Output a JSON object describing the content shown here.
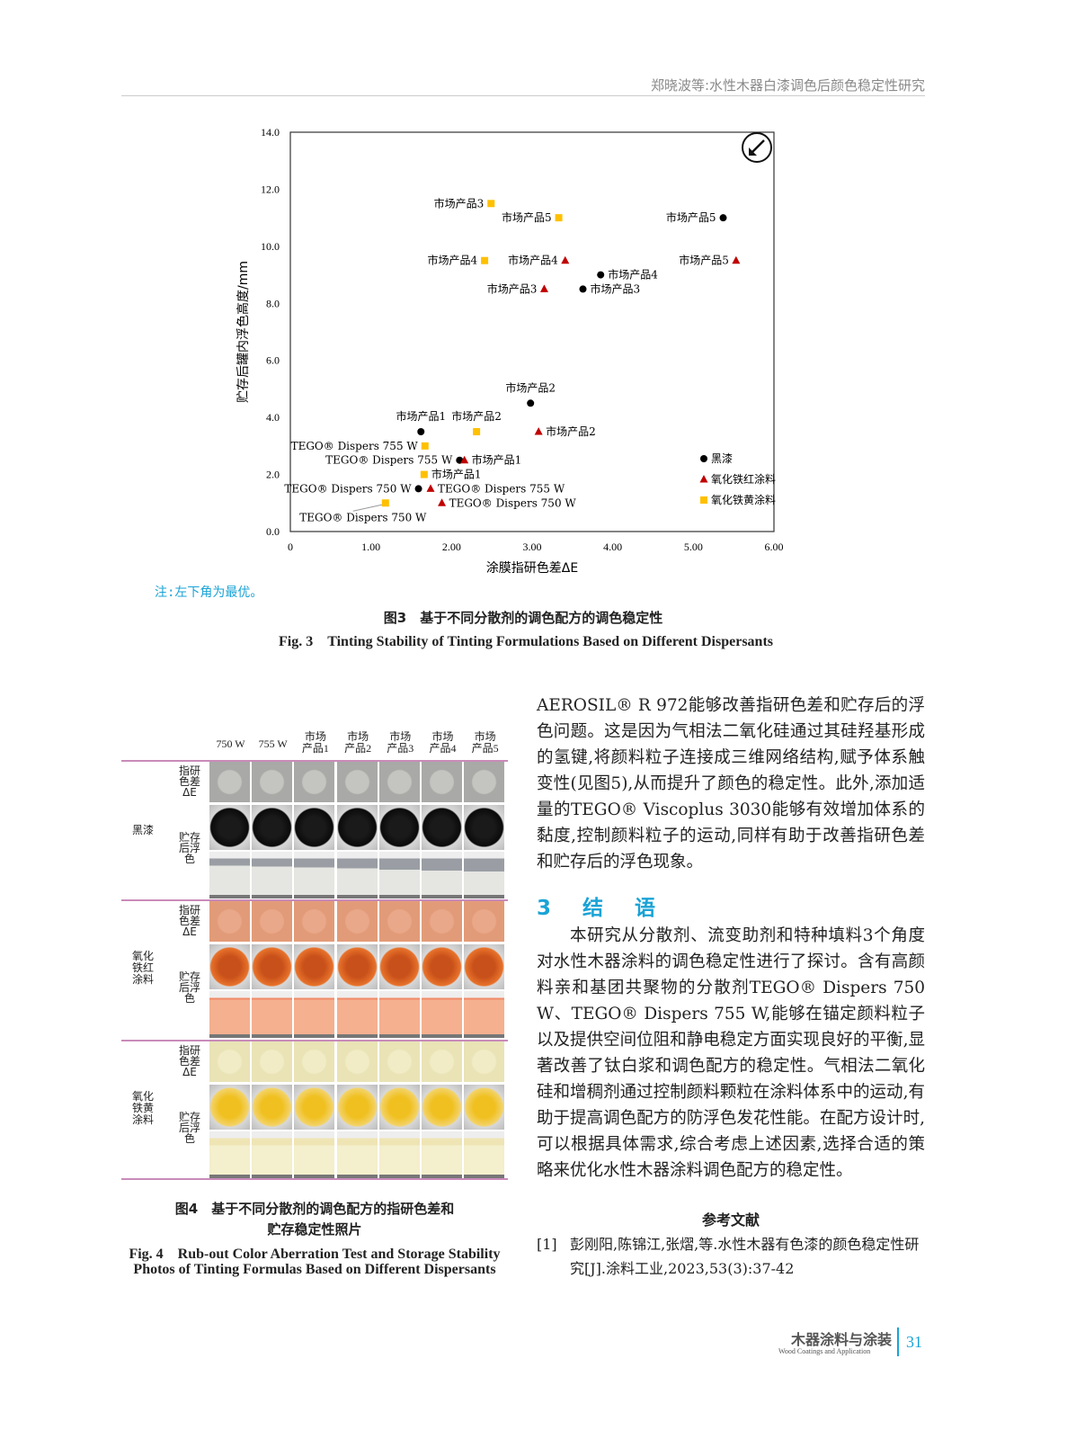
{
  "header": {
    "title": "郑晓波等:水性木器白漆调色后颜色稳定性研究"
  },
  "chart_data": {
    "type": "scatter",
    "xlabel": "涂膜指研色差ΔE",
    "ylabel": "贮存后罐内浮色高度/mm",
    "xlim": [
      0,
      6
    ],
    "ylim": [
      0,
      14
    ],
    "xticks": [
      "0",
      "1.00",
      "2.00",
      "3.00",
      "4.00",
      "5.00",
      "6.00"
    ],
    "yticks": [
      "0.0",
      "2.0",
      "4.0",
      "6.0",
      "8.0",
      "10.0",
      "12.0",
      "14.0"
    ],
    "grid": false,
    "legend_position": "bottom-right",
    "corner_icon": "arrow-down-left-circle-icon",
    "series": [
      {
        "name": "黑漆",
        "marker": "circle",
        "color": "#000000",
        "points": [
          {
            "label": "市场产品5",
            "x": 5.37,
            "y": 11.0
          },
          {
            "label": "市场产品4",
            "x": 3.85,
            "y": 9.0
          },
          {
            "label": "市场产品3",
            "x": 3.63,
            "y": 8.5
          },
          {
            "label": "市场产品2",
            "x": 2.98,
            "y": 4.5
          },
          {
            "label": "市场产品1",
            "x": 1.62,
            "y": 3.5
          },
          {
            "label": "TEGO® Dispers 755 W",
            "x": 2.1,
            "y": 2.5
          },
          {
            "label": "TEGO® Dispers 750 W",
            "x": 1.59,
            "y": 1.5
          }
        ]
      },
      {
        "name": "氧化铁红涂料",
        "marker": "triangle",
        "color": "#c00000",
        "points": [
          {
            "label": "市场产品5",
            "x": 5.53,
            "y": 9.5
          },
          {
            "label": "市场产品4",
            "x": 3.41,
            "y": 9.5
          },
          {
            "label": "市场产品3",
            "x": 3.15,
            "y": 8.5
          },
          {
            "label": "市场产品2",
            "x": 3.08,
            "y": 3.5
          },
          {
            "label": "市场产品1",
            "x": 2.16,
            "y": 2.5
          },
          {
            "label": "TEGO® Dispers 755 W",
            "x": 1.74,
            "y": 1.5
          },
          {
            "label": "TEGO® Dispers 750 W",
            "x": 1.88,
            "y": 1.0
          }
        ]
      },
      {
        "name": "氧化铁黄涂料",
        "marker": "square",
        "color": "#ffc000",
        "points": [
          {
            "label": "市场产品3",
            "x": 2.49,
            "y": 11.5
          },
          {
            "label": "市场产品5",
            "x": 3.33,
            "y": 11.0
          },
          {
            "label": "市场产品4",
            "x": 2.41,
            "y": 9.5
          },
          {
            "label": "市场产品2",
            "x": 2.31,
            "y": 3.5
          },
          {
            "label": "TEGO® Dispers 755 W",
            "x": 1.67,
            "y": 3.0
          },
          {
            "label": "市场产品1",
            "x": 1.66,
            "y": 2.0
          },
          {
            "label": "TEGO® Dispers 750 W",
            "x": 1.18,
            "y": 1.0
          }
        ]
      }
    ]
  },
  "note": "注:左下角为最优。",
  "fig3": {
    "cn": "图3　基于不同分散剂的调色配方的调色稳定性",
    "en": "Fig. 3　Tinting Stability of Tinting Formulations Based on Different Dispersants"
  },
  "fig4": {
    "columns": [
      [
        "750 W",
        ""
      ],
      [
        "755 W",
        ""
      ],
      [
        "市场",
        "产品1"
      ],
      [
        "市场",
        "产品2"
      ],
      [
        "市场",
        "产品3"
      ],
      [
        "市场",
        "产品4"
      ],
      [
        "市场",
        "产品5"
      ]
    ],
    "groups": [
      {
        "name": [
          "黑漆"
        ],
        "rub_label": [
          "指研",
          "色差",
          "ΔE"
        ],
        "storage_label": [
          "贮存",
          "后浮",
          "色"
        ]
      },
      {
        "name": [
          "氧化",
          "铁红",
          "涂料"
        ],
        "rub_label": [
          "指研",
          "色差",
          "ΔE"
        ],
        "storage_label": [
          "贮存",
          "后浮",
          "色"
        ]
      },
      {
        "name": [
          "氧化",
          "铁黄",
          "涂料"
        ],
        "rub_label": [
          "指研",
          "色差",
          "ΔE"
        ],
        "storage_label": [
          "贮存",
          "后浮",
          "色"
        ]
      }
    ],
    "cn1": "图4　基于不同分散剂的调色配方的指研色差和",
    "cn2": "贮存稳定性照片",
    "en1": "Fig. 4　Rub-out Color Aberration Test and Storage Stability",
    "en2": "Photos of Tinting Formulas Based on Different Dispersants"
  },
  "body": {
    "p1": "AEROSIL® R 972能够改善指研色差和贮存后的浮色问题。这是因为气相法二氧化硅通过其硅羟基形成的氢键,将颜料粒子连接成三维网络结构,赋予体系触变性(见图5),从而提升了颜色的稳定性。此外,添加适量的TEGO® Viscoplus 3030能够有效增加体系的黏度,控制颜料粒子的运动,同样有助于改善指研色差和贮存后的浮色现象。",
    "section_title": "3　结　语",
    "p2": "本研究从分散剂、流变助剂和特种填料3个角度对水性木器涂料的调色稳定性进行了探讨。含有高颜料亲和基团共聚物的分散剂TEGO® Dispers 750 W、TEGO® Dispers 755 W,能够在锚定颜料粒子以及提供空间位阻和静电稳定方面实现良好的平衡,显著改善了钛白浆和调色配方的稳定性。气相法二氧化硅和增稠剂通过控制颜料颗粒在涂料体系中的运动,有助于提高调色配方的防浮色发花性能。在配方设计时,可以根据具体需求,综合考虑上述因素,选择合适的策略来优化水性木器涂料调色配方的稳定性。",
    "refs_title": "参考文献",
    "ref1_num": "[1]",
    "ref1": "彭刚阳,陈锦江,张熠,等.水性木器有色漆的颜色稳定性研究[J].涂料工业,2023,53(3):37-42"
  },
  "footer": {
    "journal_cn": "木器涂料与涂装",
    "journal_en": "Wood Coatings and Application",
    "page": "31"
  }
}
